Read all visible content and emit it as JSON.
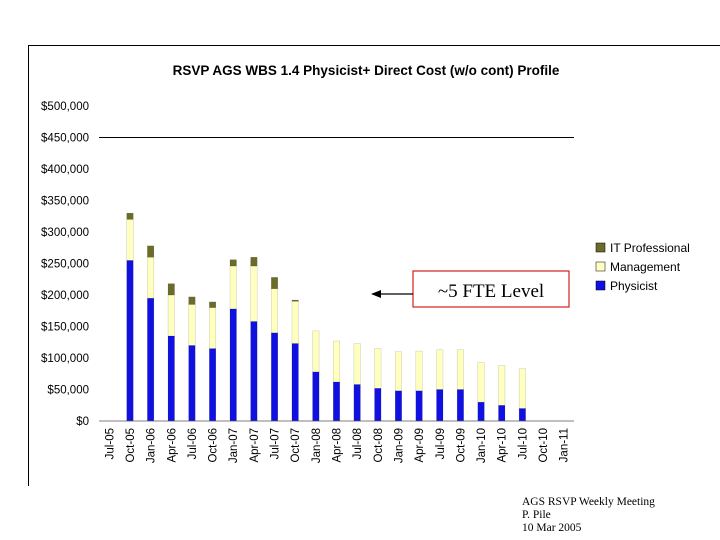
{
  "chart_data": {
    "type": "bar",
    "stacked": true,
    "title": "RSVP AGS WBS 1.4 Physicist+ Direct Cost (w/o cont) Profile",
    "xlabel": "",
    "ylabel": "",
    "ylim": [
      0,
      500000
    ],
    "yticks": [
      "$0",
      "$50,000",
      "$100,000",
      "$150,000",
      "$200,000",
      "$250,000",
      "$300,000",
      "$350,000",
      "$400,000",
      "$450,000",
      "$500,000"
    ],
    "ytick_values": [
      0,
      50000,
      100000,
      150000,
      200000,
      250000,
      300000,
      350000,
      400000,
      450000,
      500000
    ],
    "xticks": [
      "Jul-05",
      "Oct-05",
      "Jan-06",
      "Apr-06",
      "Jul-06",
      "Oct-06",
      "Jan-07",
      "Apr-07",
      "Jul-07",
      "Oct-07",
      "Jan-08",
      "Apr-08",
      "Jul-08",
      "Oct-08",
      "Jan-09",
      "Apr-09",
      "Jul-09",
      "Oct-09",
      "Jan-10",
      "Apr-10",
      "Jul-10",
      "Oct-10",
      "Jan-11"
    ],
    "categories": [
      "Jul-05",
      "Oct-05",
      "Jan-06",
      "Apr-06",
      "Jul-06",
      "Oct-06",
      "Jan-07",
      "Apr-07",
      "Jul-07",
      "Oct-07",
      "Jan-08",
      "Apr-08",
      "Jul-08",
      "Oct-08",
      "Jan-09",
      "Apr-09",
      "Jul-09",
      "Oct-09",
      "Jan-10",
      "Apr-10",
      "Jul-10",
      "Oct-10",
      "Jan-11"
    ],
    "series": [
      {
        "name": "Physicist",
        "color": "#1010e0",
        "values": [
          0,
          255000,
          195000,
          135000,
          120000,
          115000,
          178000,
          158000,
          140000,
          123000,
          78000,
          62000,
          58000,
          52000,
          48000,
          48000,
          50000,
          50000,
          30000,
          25000,
          20000,
          0,
          0
        ]
      },
      {
        "name": "Management",
        "color": "#ffffc0",
        "values": [
          0,
          65000,
          65000,
          65000,
          65000,
          65000,
          68000,
          88000,
          70000,
          67000,
          65000,
          65000,
          65000,
          63000,
          62000,
          63000,
          63000,
          63000,
          63000,
          63000,
          63000,
          0,
          0
        ]
      },
      {
        "name": "IT Professional",
        "color": "#6b6b2a",
        "values": [
          0,
          10000,
          18000,
          18000,
          12000,
          9000,
          10000,
          14000,
          18000,
          2000,
          0,
          0,
          0,
          0,
          0,
          0,
          0,
          0,
          0,
          0,
          0,
          0,
          0
        ]
      }
    ],
    "reference_line": {
      "value": 450000
    },
    "annotation": {
      "text": "~5  FTE Level"
    },
    "legend_position": "right"
  },
  "footer": {
    "line1": "AGS RSVP Weekly Meeting",
    "line2": "P. Pile",
    "line3": "10 Mar 2005"
  }
}
